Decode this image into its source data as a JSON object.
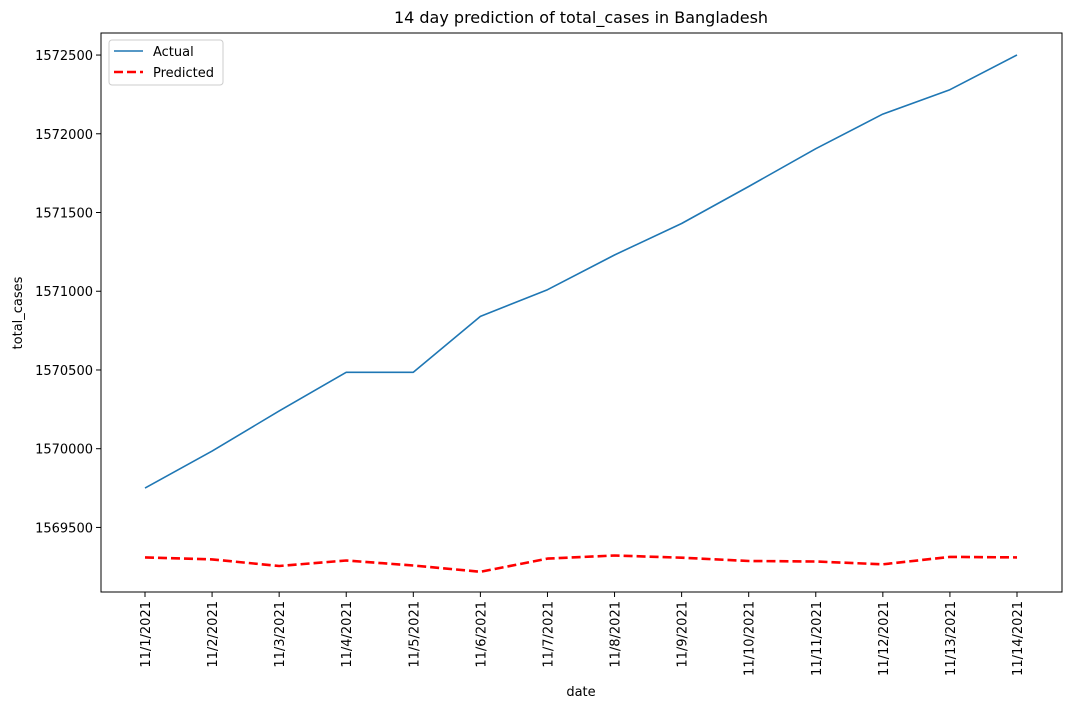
{
  "chart_data": {
    "type": "line",
    "title": "14 day prediction of total_cases in Bangladesh",
    "xlabel": "date",
    "ylabel": "total_cases",
    "categories": [
      "11/1/2021",
      "11/2/2021",
      "11/3/2021",
      "11/4/2021",
      "11/5/2021",
      "11/6/2021",
      "11/7/2021",
      "11/8/2021",
      "11/9/2021",
      "11/10/2021",
      "11/11/2021",
      "11/12/2021",
      "11/13/2021",
      "11/14/2021"
    ],
    "yticks": [
      1569500,
      1570000,
      1570500,
      1571000,
      1571500,
      1572000,
      1572500
    ],
    "ylim": [
      1569090,
      1572640
    ],
    "grid": false,
    "legend_position": "top-left",
    "series": [
      {
        "name": "Actual",
        "color": "#1f77b4",
        "style": "solid",
        "values": [
          1569750,
          1569985,
          1570240,
          1570485,
          1570485,
          1570840,
          1571010,
          1571230,
          1571430,
          1571665,
          1571905,
          1572125,
          1572280,
          1572500
        ]
      },
      {
        "name": "Predicted",
        "color": "#ff0000",
        "style": "dashed",
        "values": [
          1569310,
          1569297,
          1569255,
          1569290,
          1569258,
          1569218,
          1569302,
          1569322,
          1569308,
          1569287,
          1569284,
          1569266,
          1569313,
          1569310
        ]
      }
    ]
  }
}
